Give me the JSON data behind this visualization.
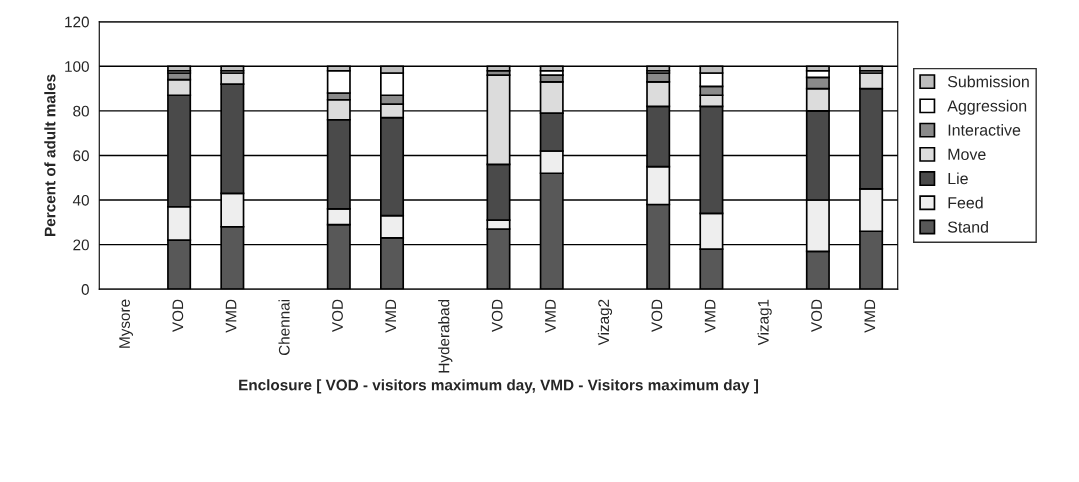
{
  "chart_data": {
    "type": "bar",
    "stacked": true,
    "xlabel": "Enclosure [ VOD - visitors maximum day, VMD - Visitors maximum day ]",
    "ylabel": "Percent of adult males",
    "categories": [
      "Mysore",
      "VOD",
      "VMD",
      "Chennai",
      "VOD",
      "VMD",
      "Hyderabad",
      "VOD",
      "VMD",
      "Vizag2",
      "VOD",
      "VMD",
      "Vizag1",
      "VOD",
      "VMD"
    ],
    "series": [
      {
        "name": "Stand",
        "color": "#585858",
        "values": [
          null,
          22,
          28,
          null,
          29,
          23,
          null,
          27,
          52,
          null,
          38,
          18,
          null,
          17,
          26
        ]
      },
      {
        "name": "Feed",
        "color": "#eeeeee",
        "values": [
          null,
          15,
          15,
          null,
          7,
          10,
          null,
          4,
          10,
          null,
          17,
          16,
          null,
          23,
          19
        ]
      },
      {
        "name": "Lie",
        "color": "#4a4a4a",
        "values": [
          null,
          50,
          49,
          null,
          40,
          44,
          null,
          25,
          17,
          null,
          27,
          48,
          null,
          40,
          45
        ]
      },
      {
        "name": "Move",
        "color": "#dcdcdc",
        "values": [
          null,
          7,
          5,
          null,
          9,
          6,
          null,
          40,
          14,
          null,
          11,
          5,
          null,
          10,
          7
        ]
      },
      {
        "name": "Interactive",
        "color": "#8a8a8a",
        "values": [
          null,
          3,
          null,
          null,
          3,
          4,
          null,
          2,
          3,
          null,
          4,
          4,
          null,
          5,
          null
        ]
      },
      {
        "name": "Aggression",
        "color": "#ffffff",
        "values": [
          null,
          1,
          1,
          null,
          10,
          10,
          null,
          null,
          2,
          null,
          1,
          6,
          null,
          3,
          1
        ]
      },
      {
        "name": "Submission",
        "color": "#bdbdbd",
        "values": [
          null,
          2,
          2,
          null,
          2,
          3,
          null,
          2,
          2,
          null,
          2,
          3,
          null,
          2,
          2
        ]
      }
    ],
    "ylim": [
      0,
      120
    ],
    "yticks": [
      0,
      20,
      40,
      60,
      80,
      100,
      120
    ],
    "grid": "y",
    "legend": "right"
  }
}
